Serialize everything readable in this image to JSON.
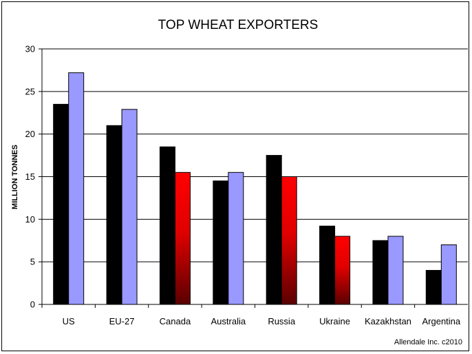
{
  "chart_data": {
    "type": "bar",
    "title": "TOP WHEAT EXPORTERS",
    "ylabel": "MILLION TONNES",
    "xlabel": "",
    "ylim": [
      0,
      30
    ],
    "yticks": [
      0,
      5,
      10,
      15,
      20,
      25,
      30
    ],
    "grid": true,
    "credit": "Allendale Inc. c2010",
    "categories": [
      "US",
      "EU-27",
      "Canada",
      "Australia",
      "Russia",
      "Ukraine",
      "Kazakhstan",
      "Argentina"
    ],
    "series": [
      {
        "values": [
          23.5,
          21.0,
          18.5,
          14.5,
          17.5,
          9.2,
          7.5,
          4.0
        ],
        "colors": [
          "#000000",
          "#000000",
          "#000000",
          "#000000",
          "#000000",
          "#000000",
          "#000000",
          "#000000"
        ]
      },
      {
        "values": [
          27.2,
          22.9,
          15.5,
          15.5,
          15.0,
          8.0,
          8.0,
          7.0
        ],
        "colors": [
          "#9999ff",
          "#9999ff",
          "red-gradient",
          "#9999ff",
          "red-gradient",
          "red-gradient",
          "#9999ff",
          "#9999ff"
        ]
      }
    ]
  }
}
